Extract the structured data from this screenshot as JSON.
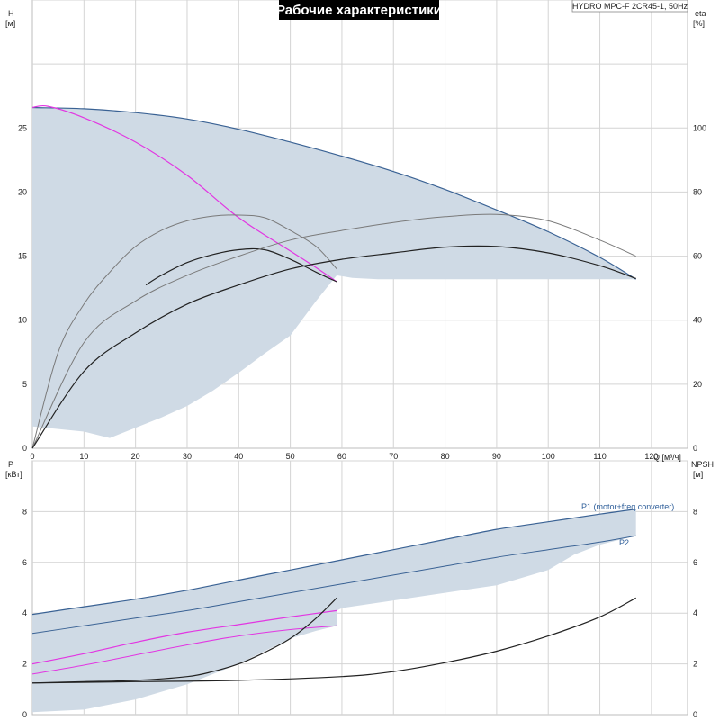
{
  "header": {
    "title": "Рабочие характеристики",
    "model": "HYDRO MPC-F 2CR45-1, 50Hz"
  },
  "chart_data": [
    {
      "type": "line",
      "panel": "top",
      "xlabel": "Q [м³/ч]",
      "x_ticks": [
        0,
        10,
        20,
        30,
        40,
        50,
        60,
        70,
        80,
        90,
        100,
        110,
        120
      ],
      "xlim": [
        0,
        127
      ],
      "ylabel": "H [м]",
      "y_ticks": [
        0,
        5,
        10,
        15,
        20,
        25
      ],
      "ylim": [
        0,
        35
      ],
      "y2label": "eta [%]",
      "y2_ticks": [
        0,
        20,
        40,
        60,
        80,
        100
      ],
      "y2lim": [
        0,
        140
      ],
      "grid": true,
      "colors": {
        "fill": "#cfdae5",
        "head": "#3a6294",
        "one_pump": "#e236e2",
        "eta": "#7a7a7a",
        "eta_dark": "#222222"
      },
      "areas": [
        {
          "name": "",
          "points": [
            [
              0,
              26.6
            ],
            [
              10,
              26.5
            ],
            [
              20,
              26.2
            ],
            [
              30,
              25.7
            ],
            [
              40,
              24.9
            ],
            [
              50,
              23.9
            ],
            [
              60,
              22.8
            ],
            [
              70,
              21.6
            ],
            [
              80,
              20.2
            ],
            [
              90,
              18.6
            ],
            [
              100,
              16.9
            ],
            [
              110,
              14.9
            ],
            [
              117,
              13.2
            ],
            [
              100,
              13.2
            ],
            [
              80,
              13.2
            ],
            [
              67,
              13.2
            ],
            [
              62,
              13.3
            ],
            [
              59,
              13.5
            ],
            [
              55,
              11.5
            ],
            [
              50,
              8.8
            ],
            [
              45,
              7.4
            ],
            [
              40,
              5.9
            ],
            [
              35,
              4.5
            ],
            [
              30,
              3.3
            ],
            [
              25,
              2.4
            ],
            [
              20,
              1.6
            ],
            [
              15,
              0.8
            ],
            [
              10,
              1.3
            ],
            [
              0,
              1.7
            ]
          ]
        }
      ],
      "series": [
        {
          "name": "",
          "axis": "y",
          "x": [
            0,
            10,
            20,
            30,
            40,
            50,
            60,
            70,
            80,
            90,
            100,
            110,
            117
          ],
          "values": [
            26.6,
            26.5,
            26.2,
            25.7,
            24.9,
            23.9,
            22.8,
            21.6,
            20.2,
            18.6,
            16.9,
            14.9,
            13.2
          ]
        },
        {
          "name": "",
          "axis": "y",
          "x": [
            0,
            3,
            10,
            20,
            30,
            40,
            50,
            55,
            59
          ],
          "values": [
            26.6,
            26.7,
            25.8,
            23.9,
            21.3,
            18.0,
            15.4,
            14.1,
            13.0
          ]
        },
        {
          "name": "",
          "axis": "y2",
          "x": [
            0,
            5,
            10,
            15,
            20,
            25,
            30,
            35,
            40,
            45,
            50,
            55,
            59
          ],
          "values": [
            0,
            30,
            45,
            55,
            63,
            68,
            71,
            72.5,
            72.8,
            72,
            68,
            63,
            56
          ]
        },
        {
          "name": "",
          "axis": "y2",
          "x": [
            22,
            25,
            30,
            35,
            40,
            45,
            50,
            55,
            59
          ],
          "values": [
            51,
            54,
            58,
            60.5,
            62,
            62,
            59,
            55,
            52
          ]
        },
        {
          "name": "",
          "axis": "y2",
          "x": [
            0,
            10,
            20,
            30,
            40,
            50,
            60,
            70,
            80,
            90,
            100,
            110,
            117
          ],
          "values": [
            0,
            33,
            46,
            54,
            60,
            65,
            68,
            70.5,
            72.3,
            73,
            71,
            65,
            60
          ]
        },
        {
          "name": "",
          "axis": "y2",
          "x": [
            0,
            10,
            20,
            30,
            40,
            50,
            60,
            70,
            80,
            90,
            100,
            110,
            117
          ],
          "values": [
            0,
            24,
            36,
            45,
            51,
            56,
            59,
            61,
            62.8,
            63,
            61,
            57,
            53
          ]
        }
      ]
    },
    {
      "type": "line",
      "panel": "bottom",
      "xlim": [
        0,
        127
      ],
      "ylabel": "P [кВт]",
      "y_ticks": [
        0,
        2,
        4,
        6,
        8
      ],
      "ylim": [
        0,
        10
      ],
      "y2label": "NPSH [м]",
      "y2_ticks": [
        0,
        2,
        4,
        6,
        8
      ],
      "y2lim": [
        0,
        10
      ],
      "grid": true,
      "colors": {
        "fill": "#cfdae5",
        "p1": "#3a6294",
        "p2": "#3a6294",
        "one_pump": "#e236e2",
        "npsh": "#222222"
      },
      "areas": [
        {
          "name": "",
          "points": [
            [
              0,
              3.95
            ],
            [
              10,
              4.25
            ],
            [
              20,
              4.55
            ],
            [
              30,
              4.9
            ],
            [
              40,
              5.3
            ],
            [
              50,
              5.7
            ],
            [
              60,
              6.1
            ],
            [
              70,
              6.5
            ],
            [
              80,
              6.9
            ],
            [
              90,
              7.3
            ],
            [
              100,
              7.6
            ],
            [
              110,
              7.9
            ],
            [
              117,
              8.1
            ],
            [
              117,
              7.05
            ],
            [
              110,
              6.7
            ],
            [
              105,
              6.3
            ],
            [
              100,
              5.7
            ],
            [
              90,
              5.1
            ],
            [
              80,
              4.8
            ],
            [
              70,
              4.5
            ],
            [
              60,
              4.2
            ],
            [
              59,
              4.1
            ],
            [
              59,
              3.5
            ],
            [
              55,
              3.3
            ],
            [
              50,
              3.0
            ],
            [
              45,
              2.5
            ],
            [
              40,
              2.0
            ],
            [
              30,
              1.2
            ],
            [
              20,
              0.6
            ],
            [
              10,
              0.2
            ],
            [
              0,
              0.1
            ]
          ]
        }
      ],
      "series": [
        {
          "name": "P1 (motor+freq.converter)",
          "x": [
            0,
            10,
            20,
            30,
            40,
            50,
            60,
            70,
            80,
            90,
            100,
            110,
            117
          ],
          "values": [
            3.95,
            4.25,
            4.55,
            4.9,
            5.3,
            5.7,
            6.1,
            6.5,
            6.9,
            7.3,
            7.6,
            7.9,
            8.1
          ]
        },
        {
          "name": "P2",
          "x": [
            0,
            10,
            20,
            30,
            40,
            50,
            60,
            70,
            80,
            90,
            100,
            110,
            117
          ],
          "values": [
            3.2,
            3.5,
            3.8,
            4.1,
            4.45,
            4.8,
            5.15,
            5.5,
            5.85,
            6.2,
            6.5,
            6.8,
            7.05
          ]
        },
        {
          "name": "",
          "x": [
            0,
            10,
            20,
            30,
            40,
            50,
            59
          ],
          "values": [
            2.0,
            2.4,
            2.85,
            3.25,
            3.55,
            3.85,
            4.1
          ]
        },
        {
          "name": "",
          "x": [
            0,
            10,
            20,
            30,
            40,
            50,
            59
          ],
          "values": [
            1.6,
            1.95,
            2.35,
            2.75,
            3.1,
            3.35,
            3.5
          ]
        },
        {
          "name": "",
          "x": [
            0,
            10,
            20,
            30,
            35,
            40,
            45,
            50,
            55,
            59
          ],
          "values": [
            1.25,
            1.3,
            1.35,
            1.5,
            1.7,
            2.0,
            2.45,
            3.0,
            3.8,
            4.6
          ]
        },
        {
          "name": "",
          "x": [
            0,
            20,
            40,
            60,
            70,
            80,
            90,
            100,
            110,
            117
          ],
          "values": [
            1.25,
            1.3,
            1.35,
            1.5,
            1.7,
            2.05,
            2.5,
            3.1,
            3.85,
            4.6
          ]
        }
      ]
    }
  ]
}
